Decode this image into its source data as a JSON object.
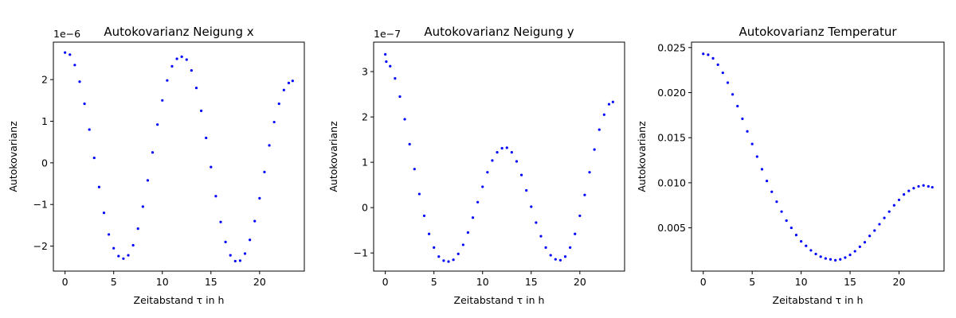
{
  "chart_data": [
    {
      "type": "scatter",
      "title": "Autokovarianz Neigung x",
      "xlabel": "Zeitabstand τ in h",
      "ylabel": "Autokovarianz",
      "offset_label": "1e−6",
      "color": "#0000ff",
      "xlim": [
        -1.2,
        24.6
      ],
      "ylim": [
        -2.6,
        2.9
      ],
      "xticks": [
        0,
        5,
        10,
        15,
        20
      ],
      "yticks": [
        -2,
        -1,
        0,
        1,
        2
      ],
      "ytick_labels": [
        "−2",
        "−1",
        "0",
        "1",
        "2"
      ],
      "series": [
        {
          "x": [
            0,
            0.5,
            1,
            1.5,
            2,
            2.5,
            3,
            3.5,
            4,
            4.5,
            5,
            5.5,
            6,
            6.5,
            7,
            7.5,
            8,
            8.5,
            9,
            9.5,
            10,
            10.5,
            11,
            11.5,
            12,
            12.5,
            13,
            13.5,
            14,
            14.5,
            15,
            15.5,
            16,
            16.5,
            17,
            17.5,
            18,
            18.5,
            19,
            19.5,
            20,
            20.5,
            21,
            21.5,
            22,
            22.5,
            23,
            23.4
          ],
          "y": [
            2.65,
            2.6,
            2.35,
            1.95,
            1.42,
            0.8,
            0.12,
            -0.58,
            -1.2,
            -1.72,
            -2.05,
            -2.24,
            -2.3,
            -2.22,
            -1.98,
            -1.58,
            -1.05,
            -0.42,
            0.25,
            0.92,
            1.5,
            1.98,
            2.32,
            2.5,
            2.55,
            2.48,
            2.22,
            1.8,
            1.25,
            0.6,
            -0.1,
            -0.8,
            -1.42,
            -1.9,
            -2.22,
            -2.36,
            -2.35,
            -2.18,
            -1.85,
            -1.4,
            -0.85,
            -0.22,
            0.42,
            0.98,
            1.42,
            1.75,
            1.92,
            1.97
          ]
        }
      ]
    },
    {
      "type": "scatter",
      "title": "Autokovarianz Neigung y",
      "xlabel": "Zeitabstand τ in h",
      "ylabel": "Autokovarianz",
      "offset_label": "1e−7",
      "color": "#0000ff",
      "xlim": [
        -1.2,
        24.6
      ],
      "ylim": [
        -1.4,
        3.65
      ],
      "xticks": [
        0,
        5,
        10,
        15,
        20
      ],
      "yticks": [
        -1,
        0,
        1,
        2,
        3
      ],
      "ytick_labels": [
        "−1",
        "0",
        "1",
        "2",
        "3"
      ],
      "series": [
        {
          "x": [
            0,
            0.1,
            0.5,
            1,
            1.5,
            2,
            2.5,
            3,
            3.5,
            4,
            4.5,
            5,
            5.5,
            6,
            6.5,
            7,
            7.5,
            8,
            8.5,
            9,
            9.5,
            10,
            10.5,
            11,
            11.5,
            12,
            12.5,
            13,
            13.5,
            14,
            14.5,
            15,
            15.5,
            16,
            16.5,
            17,
            17.5,
            18,
            18.5,
            19,
            19.5,
            20,
            20.5,
            21,
            21.5,
            22,
            22.5,
            23,
            23.4
          ],
          "y": [
            3.38,
            3.22,
            3.12,
            2.85,
            2.45,
            1.95,
            1.4,
            0.85,
            0.3,
            -0.18,
            -0.58,
            -0.88,
            -1.08,
            -1.17,
            -1.19,
            -1.15,
            -1.02,
            -0.82,
            -0.55,
            -0.22,
            0.12,
            0.46,
            0.78,
            1.04,
            1.22,
            1.31,
            1.32,
            1.22,
            1.02,
            0.72,
            0.38,
            0.02,
            -0.33,
            -0.63,
            -0.88,
            -1.05,
            -1.14,
            -1.16,
            -1.08,
            -0.88,
            -0.58,
            -0.18,
            0.28,
            0.78,
            1.28,
            1.72,
            2.05,
            2.28,
            2.33
          ]
        }
      ]
    },
    {
      "type": "scatter",
      "title": "Autokovarianz Temperatur",
      "xlabel": "Zeitabstand τ in h",
      "ylabel": "Autokovarianz",
      "color": "#0000ff",
      "xlim": [
        -1.2,
        24.6
      ],
      "ylim": [
        0.0002,
        0.0256
      ],
      "xticks": [
        0,
        5,
        10,
        15,
        20
      ],
      "yticks": [
        0.005,
        0.01,
        0.015,
        0.02,
        0.025
      ],
      "ytick_labels": [
        "0.005",
        "0.010",
        "0.015",
        "0.020",
        "0.025"
      ],
      "series": [
        {
          "x": [
            0,
            0.5,
            1,
            1.5,
            2,
            2.5,
            3,
            3.5,
            4,
            4.5,
            5,
            5.5,
            6,
            6.5,
            7,
            7.5,
            8,
            8.5,
            9,
            9.5,
            10,
            10.5,
            11,
            11.5,
            12,
            12.5,
            13,
            13.5,
            14,
            14.5,
            15,
            15.5,
            16,
            16.5,
            17,
            17.5,
            18,
            18.5,
            19,
            19.5,
            20,
            20.5,
            21,
            21.5,
            22,
            22.5,
            23,
            23.4
          ],
          "y": [
            0.0243,
            0.0242,
            0.0238,
            0.0231,
            0.0222,
            0.0211,
            0.0198,
            0.0185,
            0.0171,
            0.0157,
            0.0143,
            0.0129,
            0.0115,
            0.0102,
            0.009,
            0.0079,
            0.0068,
            0.0058,
            0.005,
            0.0042,
            0.0035,
            0.003,
            0.0025,
            0.0021,
            0.0018,
            0.0016,
            0.0015,
            0.0014,
            0.0015,
            0.0017,
            0.002,
            0.0024,
            0.0029,
            0.0034,
            0.0041,
            0.0047,
            0.0054,
            0.0061,
            0.0068,
            0.0075,
            0.0081,
            0.0087,
            0.0091,
            0.0094,
            0.0096,
            0.0097,
            0.0096,
            0.0095
          ]
        }
      ]
    }
  ]
}
